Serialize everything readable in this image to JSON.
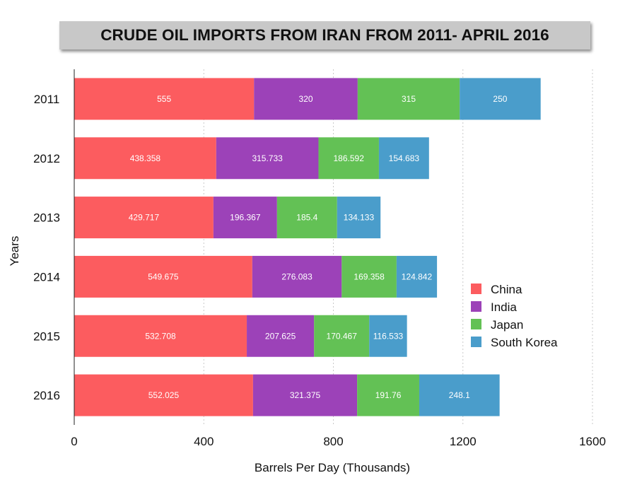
{
  "chart_data": {
    "type": "bar",
    "orientation": "horizontal",
    "stacked": true,
    "title": "CRUDE OIL IMPORTS FROM IRAN FROM 2011- APRIL 2016",
    "xlabel": "Barrels Per Day (Thousands)",
    "ylabel": "Years",
    "xlim": [
      0,
      1600
    ],
    "x_ticks": [
      "0",
      "400",
      "800",
      "1200",
      "1600"
    ],
    "grid": "vertical dashed",
    "legend_position": "right",
    "categories": [
      "2011",
      "2012",
      "2013",
      "2014",
      "2015",
      "2016"
    ],
    "series": [
      {
        "name": "China",
        "color": "#fc5c5f",
        "values": [
          555,
          438.358,
          429.717,
          549.675,
          532.708,
          552.025
        ],
        "labels": [
          "555",
          "438.358",
          "429.717",
          "549.675",
          "532.708",
          "552.025"
        ]
      },
      {
        "name": "India",
        "color": "#9c42b8",
        "values": [
          320,
          315.733,
          196.367,
          276.083,
          207.625,
          321.375
        ],
        "labels": [
          "320",
          "315.733",
          "196.367",
          "276.083",
          "207.625",
          "321.375"
        ]
      },
      {
        "name": "Japan",
        "color": "#63c155",
        "values": [
          315,
          186.592,
          185.4,
          169.358,
          170.467,
          191.76
        ],
        "labels": [
          "315",
          "186.592",
          "185.4",
          "169.358",
          "170.467",
          "191.76"
        ]
      },
      {
        "name": "South Korea",
        "color": "#4a9dcb",
        "values": [
          250,
          154.683,
          134.133,
          124.842,
          116.533,
          248.1
        ],
        "labels": [
          "250",
          "154.683",
          "134.133",
          "124.842",
          "116.533",
          "248.1"
        ]
      }
    ]
  }
}
